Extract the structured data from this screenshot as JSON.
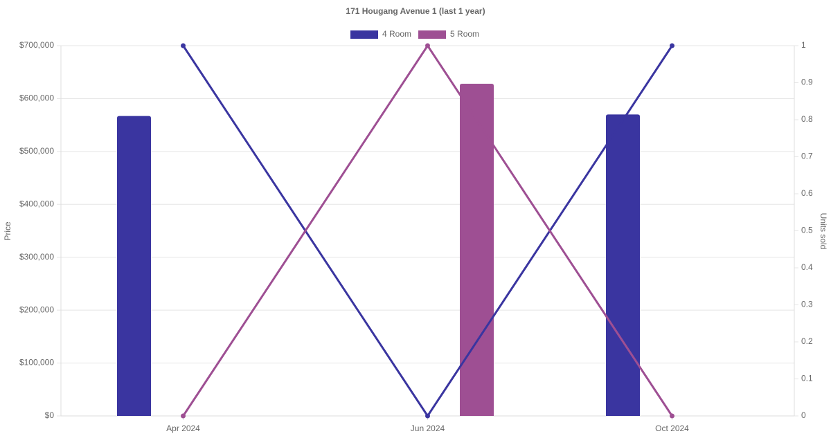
{
  "chart_data": {
    "type": "bar-line",
    "title": "171 Hougang Avenue 1 (last 1 year)",
    "y_label": "Price",
    "y2_label": "Units sold",
    "categories": [
      "Apr 2024",
      "Jun 2024",
      "Oct 2024"
    ],
    "series": [
      {
        "name": "4 Room",
        "color": "#3a35a0",
        "values": [
          567000,
          null,
          570000
        ],
        "units_sold": [
          1,
          0,
          1
        ]
      },
      {
        "name": "5 Room",
        "color": "#9e4f93",
        "values": [
          null,
          628000,
          null
        ],
        "units_sold": [
          0,
          1,
          0
        ]
      }
    ],
    "ylim": [
      0,
      700000
    ],
    "yticks": [
      {
        "value": 0,
        "label": "$0"
      },
      {
        "value": 100000,
        "label": "$100,000"
      },
      {
        "value": 200000,
        "label": "$200,000"
      },
      {
        "value": 300000,
        "label": "$300,000"
      },
      {
        "value": 400000,
        "label": "$400,000"
      },
      {
        "value": 500000,
        "label": "$500,000"
      },
      {
        "value": 600000,
        "label": "$600,000"
      },
      {
        "value": 700000,
        "label": "$700,000"
      }
    ],
    "y2lim": [
      0,
      1
    ],
    "y2ticks": [
      0,
      0.1,
      0.2,
      0.3,
      0.4,
      0.5,
      0.6,
      0.7,
      0.8,
      0.9,
      1
    ],
    "grid": true
  }
}
